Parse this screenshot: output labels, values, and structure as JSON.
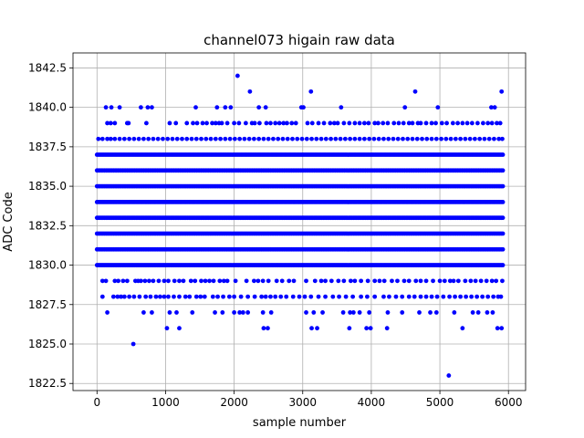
{
  "chart_data": {
    "type": "scatter",
    "title": "channel073 higain raw data",
    "xlabel": "sample number",
    "ylabel": "ADC Code",
    "xlim": [
      -350,
      6250
    ],
    "ylim": [
      1822.05,
      1843.45
    ],
    "x_ticks": [
      0,
      1000,
      2000,
      3000,
      4000,
      5000,
      6000
    ],
    "x_tick_labels": [
      "0",
      "1000",
      "2000",
      "3000",
      "4000",
      "5000",
      "6000"
    ],
    "y_ticks": [
      1822.5,
      1825.0,
      1827.5,
      1830.0,
      1832.5,
      1835.0,
      1837.5,
      1840.0,
      1842.5
    ],
    "y_tick_labels": [
      "1822.5",
      "1825.0",
      "1827.5",
      "1830.0",
      "1832.5",
      "1835.0",
      "1837.5",
      "1840.0",
      "1842.5"
    ],
    "grid": true,
    "marker_color": "#0000ff",
    "x_range": [
      0,
      5920
    ],
    "dense_levels": [
      1830,
      1831,
      1832,
      1833,
      1834,
      1835,
      1836,
      1837
    ],
    "sparse_points": [
      {
        "y": 1842,
        "x": [
          2050
        ]
      },
      {
        "y": 1841,
        "x": [
          2230,
          3120,
          4640,
          5900
        ]
      },
      {
        "y": 1840,
        "x": [
          130,
          210,
          330,
          640,
          740,
          800,
          1440,
          1750,
          1870,
          1950,
          2360,
          2460,
          2980,
          3010,
          3560,
          4490,
          4970,
          5750,
          5800
        ]
      },
      {
        "y": 1839,
        "x": [
          150,
          200,
          260,
          440,
          460,
          720,
          1060,
          1150,
          1310,
          1400,
          1460,
          1540,
          1600,
          1680,
          1730,
          1780,
          1820,
          1900,
          2000,
          2070,
          2170,
          2260,
          2300,
          2370,
          2470,
          2530,
          2600,
          2660,
          2720,
          2770,
          2840,
          2900,
          3070,
          3140,
          3230,
          3310,
          3400,
          3460,
          3510,
          3600,
          3680,
          3760,
          3830,
          3900,
          3960,
          4050,
          4100,
          4170,
          4240,
          4330,
          4400,
          4470,
          4550,
          4600,
          4680,
          4720,
          4800,
          4880,
          4940,
          5030,
          5100,
          5190,
          5260,
          5330,
          5400,
          5470,
          5550,
          5630,
          5700,
          5760,
          5830,
          5880
        ]
      },
      {
        "y": 1838,
        "x": [
          20,
          80,
          150,
          200,
          260,
          330,
          400,
          470,
          540,
          610,
          680,
          750,
          820,
          890,
          960,
          1030,
          1100,
          1170,
          1240,
          1310,
          1380,
          1450,
          1520,
          1590,
          1660,
          1730,
          1800,
          1870,
          1940,
          2010,
          2080,
          2150,
          2220,
          2290,
          2360,
          2430,
          2500,
          2570,
          2640,
          2710,
          2780,
          2850,
          2920,
          2990,
          3060,
          3130,
          3200,
          3270,
          3340,
          3410,
          3480,
          3550,
          3620,
          3690,
          3760,
          3830,
          3900,
          3970,
          4040,
          4110,
          4180,
          4250,
          4320,
          4390,
          4460,
          4530,
          4600,
          4670,
          4740,
          4810,
          4880,
          4950,
          5020,
          5090,
          5160,
          5230,
          5300,
          5370,
          5440,
          5510,
          5580,
          5650,
          5720,
          5790,
          5860,
          5910
        ]
      },
      {
        "y": 1829,
        "x": [
          80,
          130,
          260,
          310,
          380,
          440,
          560,
          600,
          640,
          700,
          760,
          820,
          900,
          980,
          1040,
          1130,
          1200,
          1260,
          1370,
          1430,
          1520,
          1580,
          1640,
          1700,
          1790,
          1850,
          1900,
          2020,
          2180,
          2290,
          2350,
          2420,
          2500,
          2620,
          2700,
          2800,
          2870,
          3050,
          3180,
          3270,
          3330,
          3420,
          3520,
          3600,
          3700,
          3760,
          3850,
          3950,
          4050,
          4120,
          4190,
          4300,
          4380,
          4480,
          4550,
          4650,
          4720,
          4800,
          4900,
          5000,
          5070,
          5150,
          5200,
          5270,
          5370,
          5450,
          5520,
          5600,
          5680,
          5760,
          5820,
          5910
        ]
      },
      {
        "y": 1828,
        "x": [
          80,
          240,
          300,
          350,
          400,
          470,
          540,
          620,
          710,
          780,
          860,
          920,
          980,
          1040,
          1120,
          1200,
          1290,
          1350,
          1450,
          1510,
          1570,
          1690,
          1760,
          1840,
          1930,
          2000,
          2100,
          2200,
          2300,
          2400,
          2460,
          2530,
          2600,
          2680,
          2760,
          2860,
          2950,
          3030,
          3120,
          3230,
          3330,
          3440,
          3530,
          3630,
          3730,
          3850,
          3940,
          4050,
          4180,
          4260,
          4360,
          4450,
          4550,
          4630,
          4720,
          4800,
          4880,
          4960,
          5050,
          5140,
          5220,
          5300,
          5380,
          5460,
          5540,
          5620,
          5700,
          5780,
          5850,
          5890
        ]
      },
      {
        "y": 1827,
        "x": [
          150,
          680,
          800,
          1060,
          1160,
          1390,
          1720,
          1830,
          2000,
          2080,
          2130,
          2200,
          2420,
          2540,
          3050,
          3160,
          3290,
          3590,
          3690,
          3740,
          3830,
          3970,
          4240,
          4450,
          4700,
          4860,
          4950,
          5210,
          5480,
          5560,
          5690,
          5770
        ]
      },
      {
        "y": 1826,
        "x": [
          1020,
          1200,
          2430,
          2490,
          3130,
          3210,
          3680,
          3930,
          3990,
          4230,
          5330,
          5840,
          5900
        ]
      },
      {
        "y": 1825,
        "x": [
          530
        ]
      },
      {
        "y": 1823,
        "x": [
          5130
        ]
      }
    ]
  }
}
